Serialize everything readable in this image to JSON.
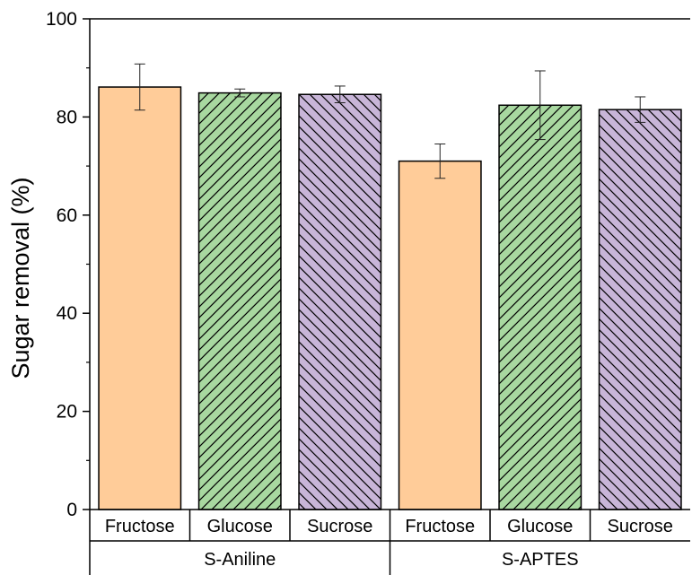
{
  "chart_data": {
    "type": "bar",
    "ylabel": "Sugar removal (%)",
    "ylim": [
      0,
      100
    ],
    "yticks": [
      0,
      20,
      40,
      60,
      80,
      100
    ],
    "groups": [
      {
        "label": "S-Aniline",
        "bars": [
          {
            "category": "Fructose",
            "value": 86.1,
            "error": 4.7,
            "color": "#FFCC99",
            "pattern": "none"
          },
          {
            "category": "Glucose",
            "value": 84.9,
            "error": 0.8,
            "color": "#A8D8A0",
            "pattern": "hatch-right"
          },
          {
            "category": "Sucrose",
            "value": 84.6,
            "error": 1.7,
            "color": "#C8B5D8",
            "pattern": "hatch-left"
          }
        ]
      },
      {
        "label": "S-APTES",
        "bars": [
          {
            "category": "Fructose",
            "value": 71.0,
            "error": 3.5,
            "color": "#FFCC99",
            "pattern": "none"
          },
          {
            "category": "Glucose",
            "value": 82.4,
            "error": 7.0,
            "color": "#A8D8A0",
            "pattern": "hatch-right"
          },
          {
            "category": "Sucrose",
            "value": 81.5,
            "error": 2.6,
            "color": "#C8B5D8",
            "pattern": "hatch-left"
          }
        ]
      }
    ],
    "grid": false,
    "legend": "none"
  }
}
